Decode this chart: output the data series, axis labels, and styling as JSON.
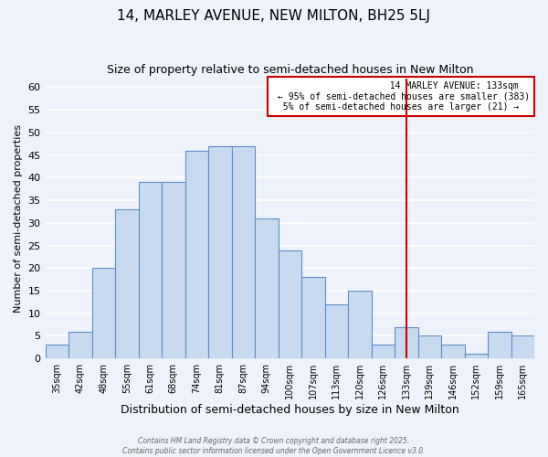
{
  "title": "14, MARLEY AVENUE, NEW MILTON, BH25 5LJ",
  "subtitle": "Size of property relative to semi-detached houses in New Milton",
  "xlabel": "Distribution of semi-detached houses by size in New Milton",
  "ylabel": "Number of semi-detached properties",
  "bar_labels": [
    "35sqm",
    "42sqm",
    "48sqm",
    "55sqm",
    "61sqm",
    "68sqm",
    "74sqm",
    "81sqm",
    "87sqm",
    "94sqm",
    "100sqm",
    "107sqm",
    "113sqm",
    "120sqm",
    "126sqm",
    "133sqm",
    "139sqm",
    "146sqm",
    "152sqm",
    "159sqm",
    "165sqm"
  ],
  "bar_values": [
    3,
    6,
    20,
    33,
    39,
    39,
    46,
    47,
    47,
    31,
    24,
    18,
    12,
    15,
    3,
    7,
    5,
    3,
    1,
    6,
    5
  ],
  "bar_color": "#c8daf0",
  "bar_edge_color": "#5b8fc9",
  "ylim": [
    0,
    62
  ],
  "yticks": [
    0,
    5,
    10,
    15,
    20,
    25,
    30,
    35,
    40,
    45,
    50,
    55,
    60
  ],
  "vline_index": 15,
  "vline_color": "#cc0000",
  "annotation_title": "14 MARLEY AVENUE: 133sqm",
  "annotation_line1": "← 95% of semi-detached houses are smaller (383)",
  "annotation_line2": "5% of semi-detached houses are larger (21) →",
  "annotation_box_color": "#cc0000",
  "footnote1": "Contains HM Land Registry data © Crown copyright and database right 2025.",
  "footnote2": "Contains public sector information licensed under the Open Government Licence v3.0.",
  "background_color": "#eef2fa",
  "grid_color": "#ffffff",
  "title_fontsize": 11,
  "subtitle_fontsize": 9,
  "figsize": [
    6.0,
    5.0
  ],
  "dpi": 100
}
